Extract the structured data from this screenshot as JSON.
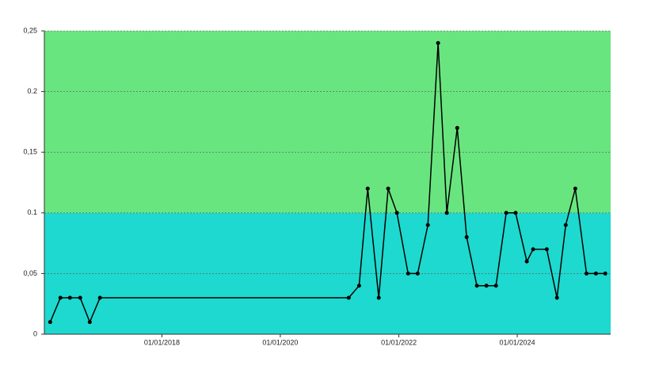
{
  "chart_data": {
    "type": "line",
    "x": [
      "2016-02-12",
      "2016-04-15",
      "2016-06-13",
      "2016-08-15",
      "2016-10-13",
      "2016-12-15",
      "2021-02-26",
      "2021-05-01",
      "2021-06-23",
      "2021-08-30",
      "2021-10-27",
      "2021-12-20",
      "2022-02-27",
      "2022-04-27",
      "2022-06-29",
      "2022-08-31",
      "2022-10-24",
      "2022-12-27",
      "2023-02-23",
      "2023-04-27",
      "2023-06-25",
      "2023-08-23",
      "2023-10-25",
      "2023-12-22",
      "2024-02-29",
      "2024-04-08",
      "2024-07-01",
      "2024-09-02",
      "2024-10-26",
      "2024-12-24",
      "2025-03-03",
      "2025-04-30",
      "2025-06-27"
    ],
    "series": [
      {
        "color": "#000000",
        "values": [
          0.01,
          0.03,
          0.03,
          0.03,
          0.01,
          0.03,
          0.03,
          0.04,
          0.12,
          0.03,
          0.12,
          0.1,
          0.05,
          0.05,
          0.09,
          0.24,
          0.1,
          0.17,
          0.08,
          0.04,
          0.04,
          0.04,
          0.1,
          0.1,
          0.06,
          0.07,
          0.07,
          0.03,
          0.09,
          0.12,
          0.05,
          0.05,
          0.05
        ]
      }
    ],
    "xlim": [
      "2016-01-07",
      "2025-07-30"
    ],
    "xticks": [
      {
        "value": "2018-01-01",
        "label": "01/01/2018"
      },
      {
        "value": "2020-01-01",
        "label": "01/01/2020"
      },
      {
        "value": "2022-01-01",
        "label": "01/01/2022"
      },
      {
        "value": "2024-01-01",
        "label": "01/01/2024"
      }
    ],
    "ylim": [
      0,
      0.25
    ],
    "yticks": [
      0,
      {
        "value": 0.05,
        "label": "0,05"
      },
      0.1,
      {
        "value": 0.15,
        "label": "0,15"
      },
      0.2,
      {
        "value": 0.25,
        "label": "0,25"
      }
    ],
    "grid": true,
    "bands": [
      {
        "from": 0,
        "to": 0.1,
        "color": "#1dd9cf"
      },
      {
        "from": 0.1,
        "to": 0.25,
        "color": "#69e57f"
      }
    ]
  }
}
